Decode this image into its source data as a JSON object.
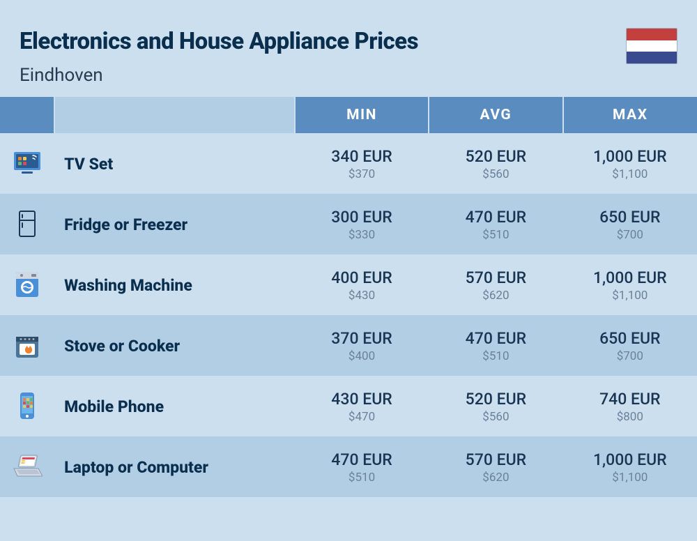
{
  "header": {
    "title": "Electronics and House Appliance Prices",
    "subtitle": "Eindhoven",
    "flag_colors": [
      "#c4403e",
      "#ffffff",
      "#3a4a8f"
    ]
  },
  "table": {
    "columns": [
      "MIN",
      "AVG",
      "MAX"
    ],
    "rows": [
      {
        "icon": "tv",
        "name": "TV Set",
        "min_eur": "340 EUR",
        "min_usd": "$370",
        "avg_eur": "520 EUR",
        "avg_usd": "$560",
        "max_eur": "1,000 EUR",
        "max_usd": "$1,100"
      },
      {
        "icon": "fridge",
        "name": "Fridge or Freezer",
        "min_eur": "300 EUR",
        "min_usd": "$330",
        "avg_eur": "470 EUR",
        "avg_usd": "$510",
        "max_eur": "650 EUR",
        "max_usd": "$700"
      },
      {
        "icon": "washer",
        "name": "Washing Machine",
        "min_eur": "400 EUR",
        "min_usd": "$430",
        "avg_eur": "570 EUR",
        "avg_usd": "$620",
        "max_eur": "1,000 EUR",
        "max_usd": "$1,100"
      },
      {
        "icon": "stove",
        "name": "Stove or Cooker",
        "min_eur": "370 EUR",
        "min_usd": "$400",
        "avg_eur": "470 EUR",
        "avg_usd": "$510",
        "max_eur": "650 EUR",
        "max_usd": "$700"
      },
      {
        "icon": "phone",
        "name": "Mobile Phone",
        "min_eur": "430 EUR",
        "min_usd": "$470",
        "avg_eur": "520 EUR",
        "avg_usd": "$560",
        "max_eur": "740 EUR",
        "max_usd": "$800"
      },
      {
        "icon": "laptop",
        "name": "Laptop or Computer",
        "min_eur": "470 EUR",
        "min_usd": "$510",
        "avg_eur": "570 EUR",
        "avg_usd": "$620",
        "max_eur": "1,000 EUR",
        "max_usd": "$1,100"
      }
    ]
  },
  "icons": {
    "colors": {
      "tv_body": "#4a90d9",
      "tv_screen": "#2c5c8f",
      "fridge_stroke": "#1a3552",
      "washer_body": "#4a90d9",
      "washer_panel": "#cfd8e3",
      "stove_body": "#4a7599",
      "stove_top": "#2f4d66",
      "stove_flame": "#ee822e",
      "phone_body": "#4a90d9",
      "phone_screen": "#6bb5eb",
      "laptop_body": "#cfd8e3",
      "laptop_screen": "#ffffff",
      "dot1": "#ee822e",
      "dot2": "#f5c84b",
      "dot3": "#68b56e",
      "dot4": "#d94a5e"
    }
  }
}
